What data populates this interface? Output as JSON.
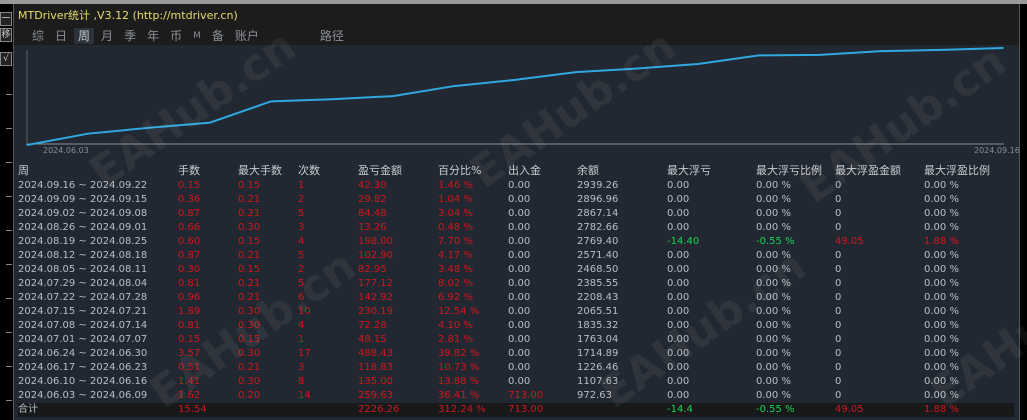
{
  "window": {
    "title": "MTDriver统计 ,V3.12 (http://mtdriver.cn)",
    "left_buttons": [
      "一",
      "移",
      "√"
    ]
  },
  "tabs": [
    {
      "label": "综",
      "active": false
    },
    {
      "label": "日",
      "active": false
    },
    {
      "label": "周",
      "active": true
    },
    {
      "label": "月",
      "active": false
    },
    {
      "label": "季",
      "active": false
    },
    {
      "label": "年",
      "active": false
    },
    {
      "label": "币",
      "active": false
    },
    {
      "label": "M",
      "active": false
    },
    {
      "label": "备",
      "active": false
    },
    {
      "label": "账户",
      "active": false
    },
    {
      "label": "路径",
      "active": false
    }
  ],
  "chart_data": {
    "type": "line",
    "x_start_label": "2024.06.03",
    "x_end_label": "2024.09.16",
    "line_color": "#2fa8e0",
    "series": [
      {
        "values": [
          713.0,
          972.63,
          1107.63,
          1226.46,
          1714.89,
          1763.04,
          1835.32,
          2065.51,
          2208.43,
          2385.55,
          2468.5,
          2571.4,
          2769.4,
          2782.66,
          2867.14,
          2896.96,
          2939.26
        ]
      }
    ]
  },
  "table": {
    "headers": [
      "周",
      "手数",
      "最大手数",
      "次数",
      "盈亏金额",
      "百分比%",
      "出入金",
      "余额",
      "最大浮亏",
      "最大浮亏比例",
      "最大浮盈金额",
      "最大浮盈比例"
    ],
    "rows": [
      [
        "2024.09.16 ~ 2024.09.22",
        "0.15",
        "0.15",
        "1",
        "42.30",
        "1.46 %",
        "0.00",
        "2939.26",
        "0.00",
        "0.00 %",
        "0",
        "0.00 %"
      ],
      [
        "2024.09.09 ~ 2024.09.15",
        "0.36",
        "0.21",
        "2",
        "29.82",
        "1.04 %",
        "0.00",
        "2896.96",
        "0.00",
        "0.00 %",
        "0",
        "0.00 %"
      ],
      [
        "2024.09.02 ~ 2024.09.08",
        "0.87",
        "0.21",
        "5",
        "84.48",
        "3.04 %",
        "0.00",
        "2867.14",
        "0.00",
        "0.00 %",
        "0",
        "0.00 %"
      ],
      [
        "2024.08.26 ~ 2024.09.01",
        "0.66",
        "0.30",
        "3",
        "13.26",
        "0.48 %",
        "0.00",
        "2782.66",
        "0.00",
        "0.00 %",
        "0",
        "0.00 %"
      ],
      [
        "2024.08.19 ~ 2024.08.25",
        "0.60",
        "0.15",
        "4",
        "198.00",
        "7.70 %",
        "0.00",
        "2769.40",
        "-14.40",
        "-0.55 %",
        "49.05",
        "1.88 %"
      ],
      [
        "2024.08.12 ~ 2024.08.18",
        "0.87",
        "0.21",
        "5",
        "102.90",
        "4.17 %",
        "0.00",
        "2571.40",
        "0.00",
        "0.00 %",
        "0",
        "0.00 %"
      ],
      [
        "2024.08.05 ~ 2024.08.11",
        "0.30",
        "0.15",
        "2",
        "82.95",
        "3.48 %",
        "0.00",
        "2468.50",
        "0.00",
        "0.00 %",
        "0",
        "0.00 %"
      ],
      [
        "2024.07.29 ~ 2024.08.04",
        "0.81",
        "0.21",
        "5",
        "177.12",
        "8.02 %",
        "0.00",
        "2385.55",
        "0.00",
        "0.00 %",
        "0",
        "0.00 %"
      ],
      [
        "2024.07.22 ~ 2024.07.28",
        "0.96",
        "0.21",
        "6",
        "142.92",
        "6.92 %",
        "0.00",
        "2208.43",
        "0.00",
        "0.00 %",
        "0",
        "0.00 %"
      ],
      [
        "2024.07.15 ~ 2024.07.21",
        "1.89",
        "0.30",
        "10",
        "230.19",
        "12.54 %",
        "0.00",
        "2065.51",
        "0.00",
        "0.00 %",
        "0",
        "0.00 %"
      ],
      [
        "2024.07.08 ~ 2024.07.14",
        "0.81",
        "0.30",
        "4",
        "72.28",
        "4.10 %",
        "0.00",
        "1835.32",
        "0.00",
        "0.00 %",
        "0",
        "0.00 %"
      ],
      [
        "2024.07.01 ~ 2024.07.07",
        "0.15",
        "0.15",
        "1",
        "48.15",
        "2.81 %",
        "0.00",
        "1763.04",
        "0.00",
        "0.00 %",
        "0",
        "0.00 %"
      ],
      [
        "2024.06.24 ~ 2024.06.30",
        "3.57",
        "0.30",
        "17",
        "488.43",
        "39.82 %",
        "0.00",
        "1714.89",
        "0.00",
        "0.00 %",
        "0",
        "0.00 %"
      ],
      [
        "2024.06.17 ~ 2024.06.23",
        "0.51",
        "0.21",
        "3",
        "118.83",
        "10.73 %",
        "0.00",
        "1226.46",
        "0.00",
        "0.00 %",
        "0",
        "0.00 %"
      ],
      [
        "2024.06.10 ~ 2024.06.16",
        "1.41",
        "0.30",
        "8",
        "135.00",
        "13.88 %",
        "0.00",
        "1107.63",
        "0.00",
        "0.00 %",
        "0",
        "0.00 %"
      ],
      [
        "2024.06.03 ~ 2024.06.09",
        "1.62",
        "0.20",
        "14",
        "259.63",
        "36.41 %",
        "713.00",
        "972.63",
        "0.00",
        "0.00 %",
        "0",
        "0.00 %"
      ]
    ],
    "total": [
      "合计",
      "15.54",
      "",
      "",
      "2226.26",
      "312.24 %",
      "713.00",
      "",
      "-14.4",
      "-0.55 %",
      "49.05",
      "1.88 %"
    ]
  },
  "watermark": "EAHub.cn",
  "colors": {
    "profit": "#d0161b",
    "loss": "#17d34f",
    "title": "#e6de6a"
  }
}
